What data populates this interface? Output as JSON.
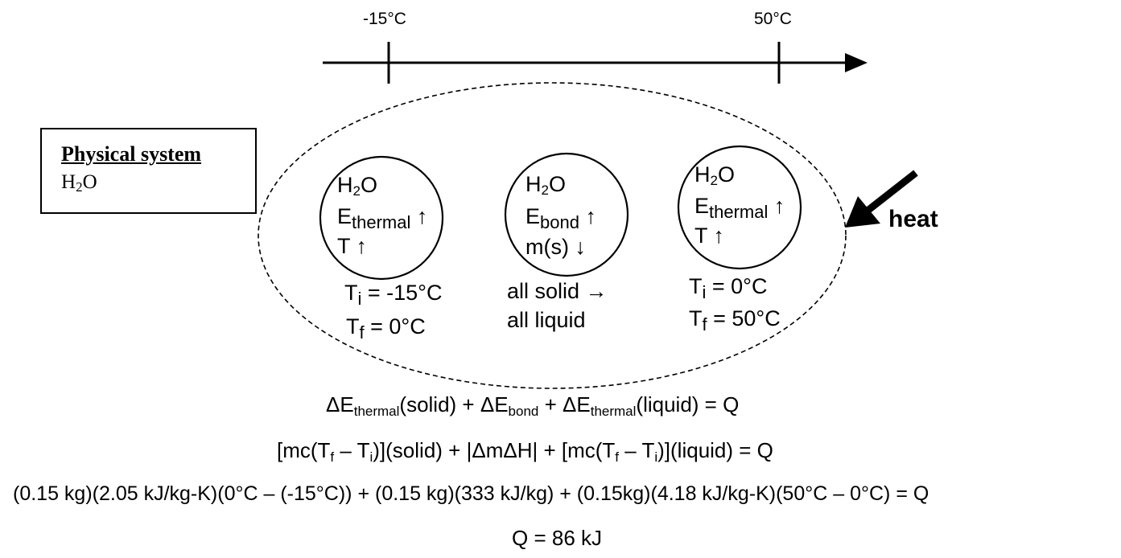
{
  "timeline": {
    "start_label": "-15°C",
    "end_label": "50°C"
  },
  "system_box": {
    "title": "Physical system",
    "substance_main": "H",
    "substance_sub": "2",
    "substance_end": "O"
  },
  "stages": [
    {
      "formula": "H",
      "formula_sub": "2",
      "formula_end": "O",
      "energy_main": "E",
      "energy_sub": "thermal",
      "energy_arrow": "↑",
      "third_line": "T ↑",
      "cond1_main": "T",
      "cond1_sub": "i",
      "cond1_rest": " = -15°C",
      "cond2_main": "T",
      "cond2_sub": "f",
      "cond2_rest": "  = 0°C"
    },
    {
      "formula": "H",
      "formula_sub": "2",
      "formula_end": "O",
      "energy_main": "E",
      "energy_sub": "bond",
      "energy_arrow": "↑",
      "third_line": "m(s) ↓",
      "cond1_text": "all solid →",
      "cond2_text": "all liquid"
    },
    {
      "formula": "H",
      "formula_sub": "2",
      "formula_end": "O",
      "energy_main": "E",
      "energy_sub": "thermal",
      "energy_arrow": "↑",
      "third_line": "T ↑",
      "cond1_main": "T",
      "cond1_sub": "i",
      "cond1_rest": " = 0°C",
      "cond2_main": "T",
      "cond2_sub": "f",
      "cond2_rest": "  = 50°C"
    }
  ],
  "heat_label": "heat",
  "equations": {
    "eq1": {
      "d1": "ΔE",
      "s1": "thermal",
      "t1": "(solid) + ΔE",
      "s2": "bond",
      "t2": " + ΔE",
      "s3": "thermal",
      "t3": "(liquid) = Q"
    },
    "eq2": {
      "a": "[mc(T",
      "s1": "f",
      "b": " – T",
      "s2": "i",
      "c": ")](solid) + |ΔmΔH| + [mc(T",
      "s3": "f",
      "d": " – T",
      "s4": "i",
      "e": ")](liquid) = Q"
    },
    "eq3": "(0.15 kg)(2.05 kJ/kg-K)(0°C – (-15°C)) + (0.15 kg)(333 kJ/kg) + (0.15kg)(4.18 kJ/kg-K)(50°C – 0°C) = Q",
    "eq4": "Q = 86 kJ"
  }
}
